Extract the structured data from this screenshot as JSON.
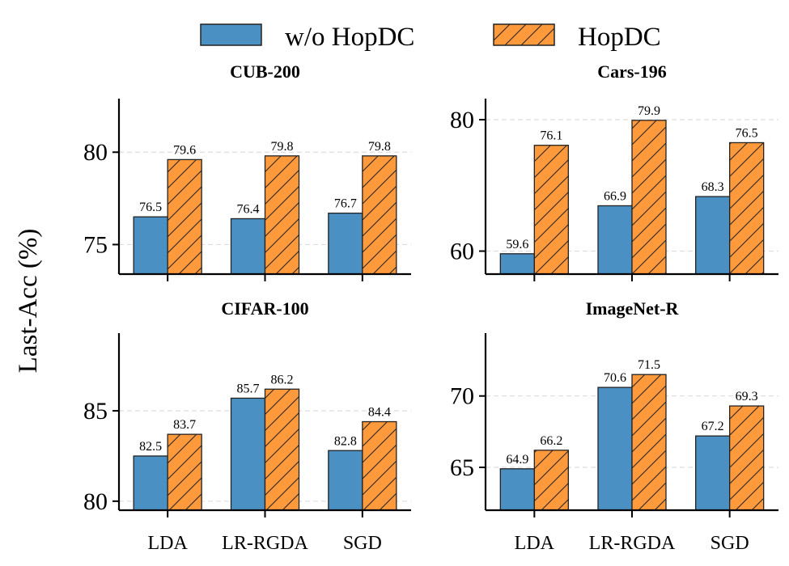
{
  "legend": {
    "items": [
      {
        "label": "w/o HopDC",
        "color": "#4a90c2",
        "hatch": false
      },
      {
        "label": "HopDC",
        "color": "#ff9a3c",
        "hatch": true
      }
    ]
  },
  "ylabel": "Last-Acc (%)",
  "chart_data": [
    {
      "type": "bar",
      "title": "CUB-200",
      "categories": [
        "LDA",
        "LR-RGDA",
        "SGD"
      ],
      "show_category_labels": false,
      "series": [
        {
          "name": "w/o HopDC",
          "values": [
            76.5,
            76.4,
            76.7
          ]
        },
        {
          "name": "HopDC",
          "values": [
            79.6,
            79.8,
            79.8
          ]
        }
      ],
      "ylim": [
        73.4,
        82.9
      ],
      "yticks": [
        75,
        80
      ],
      "grid": true
    },
    {
      "type": "bar",
      "title": "Cars-196",
      "categories": [
        "LDA",
        "LR-RGDA",
        "SGD"
      ],
      "show_category_labels": false,
      "series": [
        {
          "name": "w/o HopDC",
          "values": [
            59.6,
            66.9,
            68.3
          ]
        },
        {
          "name": "HopDC",
          "values": [
            76.1,
            79.9,
            76.5
          ]
        }
      ],
      "ylim": [
        56.5,
        83.2
      ],
      "yticks": [
        60,
        80
      ],
      "grid": true
    },
    {
      "type": "bar",
      "title": "CIFAR-100",
      "categories": [
        "LDA",
        "LR-RGDA",
        "SGD"
      ],
      "show_category_labels": true,
      "series": [
        {
          "name": "w/o HopDC",
          "values": [
            82.5,
            85.7,
            82.8
          ]
        },
        {
          "name": "HopDC",
          "values": [
            83.7,
            86.2,
            84.4
          ]
        }
      ],
      "ylim": [
        79.5,
        89.3
      ],
      "yticks": [
        80,
        85
      ],
      "grid": true
    },
    {
      "type": "bar",
      "title": "ImageNet-R",
      "categories": [
        "LDA",
        "LR-RGDA",
        "SGD"
      ],
      "show_category_labels": true,
      "series": [
        {
          "name": "w/o HopDC",
          "values": [
            64.9,
            70.6,
            67.2
          ]
        },
        {
          "name": "HopDC",
          "values": [
            66.2,
            71.5,
            69.3
          ]
        }
      ],
      "ylim": [
        62.0,
        74.4
      ],
      "yticks": [
        65,
        70
      ],
      "grid": true
    }
  ]
}
